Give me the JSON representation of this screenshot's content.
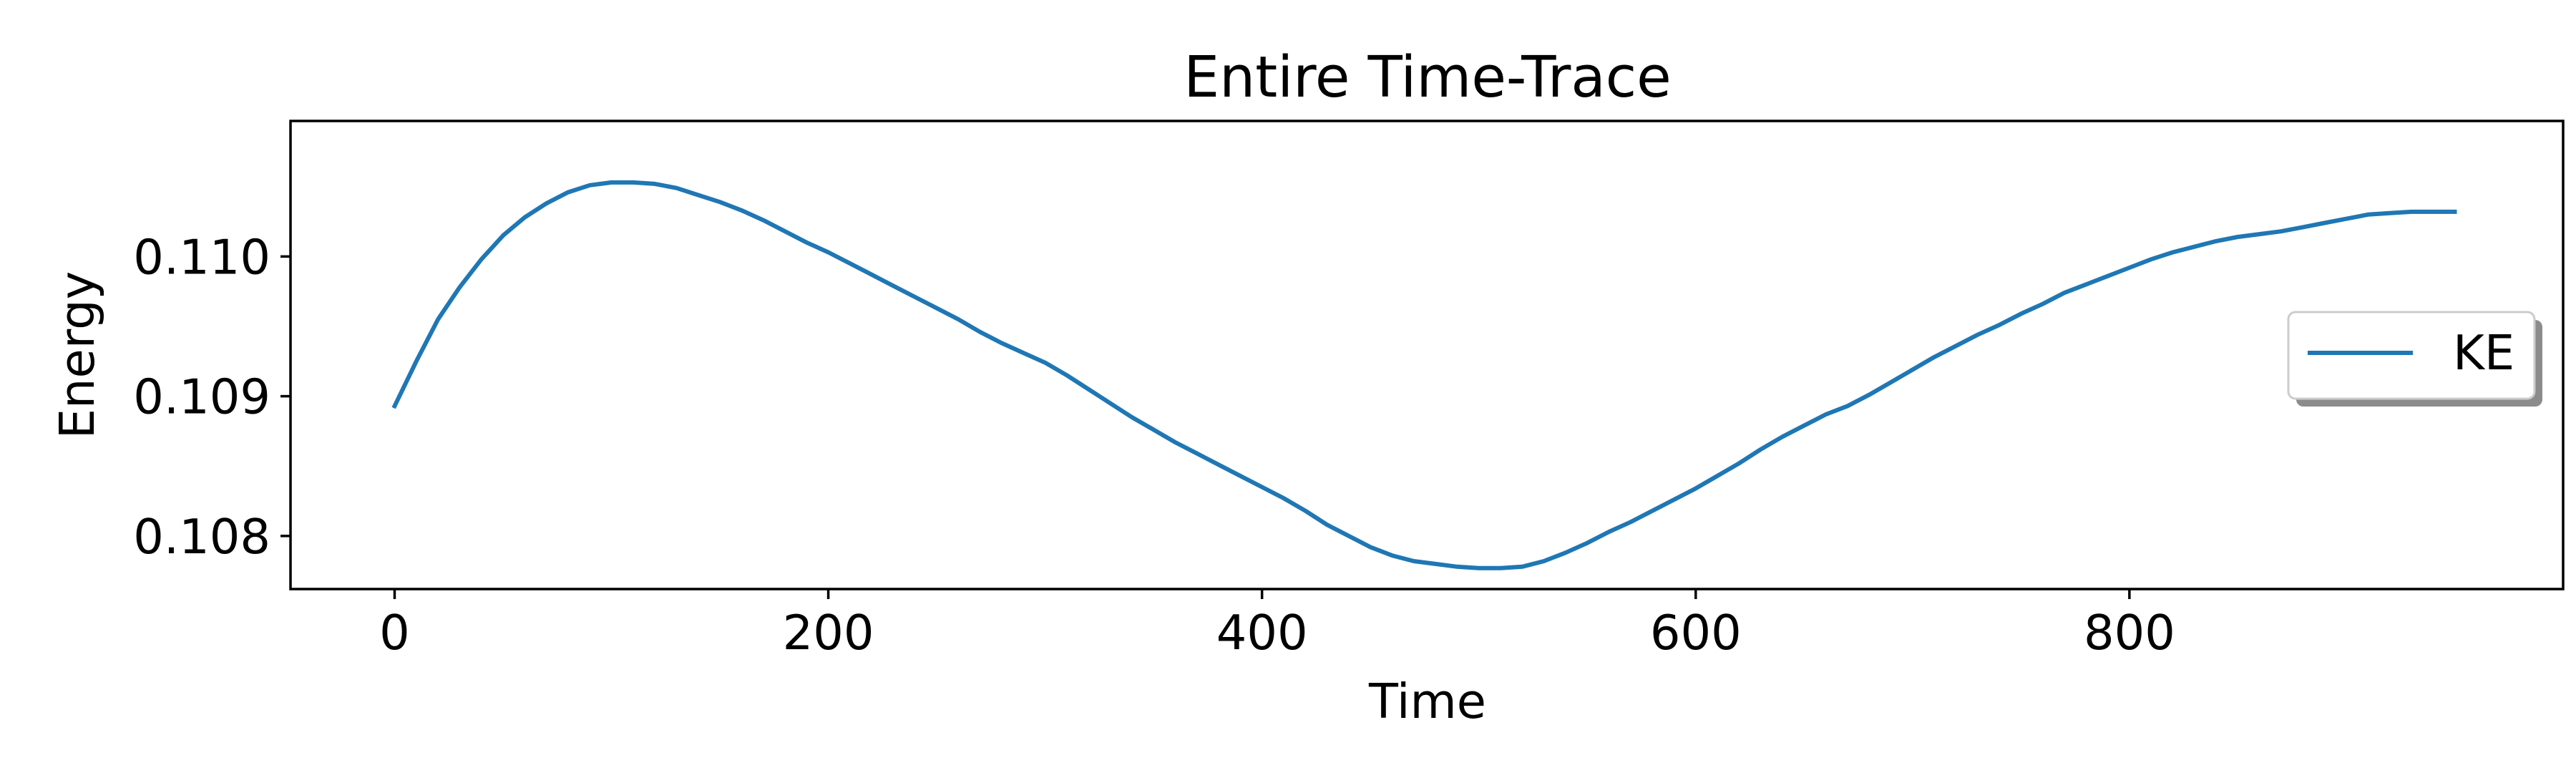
{
  "chart_data": {
    "type": "line",
    "title": "Entire Time-Trace",
    "xlabel": "Time",
    "ylabel": "Energy",
    "xlim": [
      -48,
      1000
    ],
    "ylim": [
      0.10762,
      0.11097
    ],
    "xticks": [
      0,
      200,
      400,
      600,
      800
    ],
    "xtick_labels": [
      "0",
      "200",
      "400",
      "600",
      "800"
    ],
    "yticks": [
      0.108,
      0.109,
      0.11
    ],
    "ytick_labels": [
      "0.108",
      "0.109",
      "0.110"
    ],
    "grid": false,
    "legend": {
      "position": "center-right",
      "shadow": true
    },
    "series": [
      {
        "name": "KE",
        "color": "#1f77b4",
        "x": [
          0,
          10,
          20,
          30,
          40,
          50,
          60,
          70,
          80,
          90,
          100,
          110,
          120,
          130,
          140,
          150,
          160,
          170,
          180,
          190,
          200,
          210,
          220,
          230,
          240,
          250,
          260,
          270,
          280,
          290,
          300,
          310,
          320,
          330,
          340,
          350,
          360,
          370,
          380,
          390,
          400,
          410,
          420,
          430,
          440,
          450,
          460,
          470,
          480,
          490,
          500,
          510,
          520,
          530,
          540,
          550,
          560,
          570,
          580,
          590,
          600,
          610,
          620,
          630,
          640,
          650,
          660,
          670,
          680,
          690,
          700,
          710,
          720,
          730,
          740,
          750,
          760,
          770,
          780,
          790,
          800,
          810,
          820,
          830,
          840,
          850,
          860,
          870,
          880,
          890,
          900,
          910,
          920,
          930,
          940,
          950
        ],
        "values": [
          0.10893,
          0.10925,
          0.10955,
          0.10978,
          0.10998,
          0.11015,
          0.11028,
          0.11038,
          0.11046,
          0.11051,
          0.11053,
          0.11053,
          0.11052,
          0.11049,
          0.11044,
          0.11039,
          0.11033,
          0.11026,
          0.11018,
          0.1101,
          0.11003,
          0.10995,
          0.10987,
          0.10979,
          0.10971,
          0.10963,
          0.10955,
          0.10946,
          0.10938,
          0.10931,
          0.10924,
          0.10915,
          0.10905,
          0.10895,
          0.10885,
          0.10876,
          0.10867,
          0.10859,
          0.10851,
          0.10843,
          0.10835,
          0.10827,
          0.10818,
          0.10808,
          0.108,
          0.10792,
          0.10786,
          0.10782,
          0.1078,
          0.10778,
          0.10777,
          0.10777,
          0.10778,
          0.10782,
          0.10788,
          0.10795,
          0.10803,
          0.1081,
          0.10818,
          0.10826,
          0.10834,
          0.10843,
          0.10852,
          0.10862,
          0.10871,
          0.10879,
          0.10887,
          0.10893,
          0.10901,
          0.1091,
          0.10919,
          0.10928,
          0.10936,
          0.10944,
          0.10951,
          0.10959,
          0.10966,
          0.10974,
          0.1098,
          0.10986,
          0.10992,
          0.10998,
          0.11003,
          0.11007,
          0.11011,
          0.11014,
          0.11016,
          0.11018,
          0.11021,
          0.11024,
          0.11027,
          0.1103,
          0.11031,
          0.11032,
          0.11032,
          0.11032
        ]
      }
    ]
  }
}
